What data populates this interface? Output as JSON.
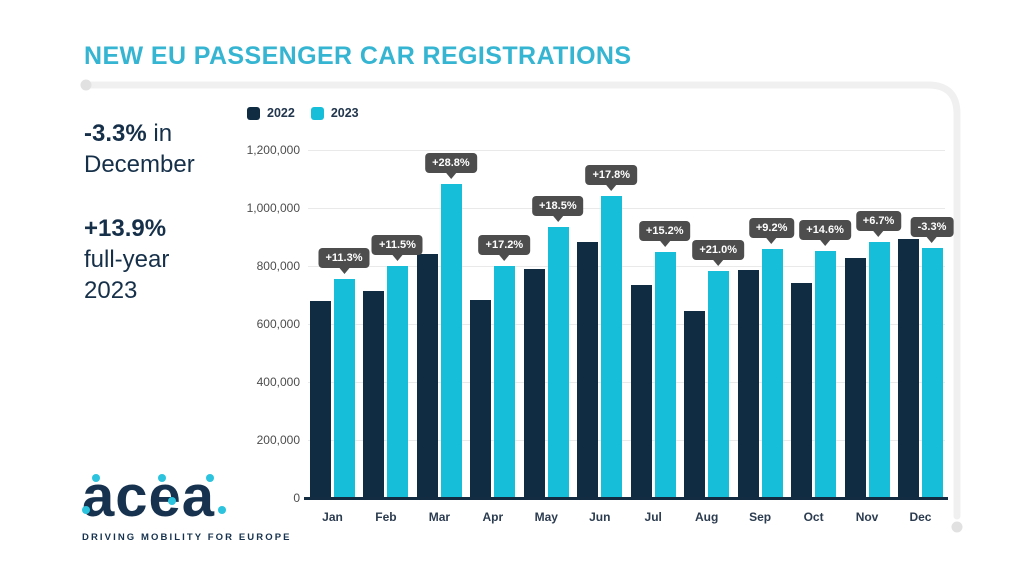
{
  "title": "NEW EU PASSENGER CAR REGISTRATIONS",
  "highlights": {
    "december": {
      "value": "-3.3%",
      "suffix": " in",
      "line2": "December"
    },
    "fullyear": {
      "value": "+13.9%",
      "line2": "full-year",
      "line3": "2023"
    }
  },
  "colors": {
    "accent_cyan": "#17bed9",
    "navy": "#0f2c43",
    "title_cyan": "#35b5d2",
    "callout_bg": "#4d4d4d",
    "gridline": "#e9e9e9"
  },
  "chart_data": {
    "type": "bar",
    "title": "",
    "xlabel": "",
    "ylabel": "",
    "categories": [
      "Jan",
      "Feb",
      "Mar",
      "Apr",
      "May",
      "Jun",
      "Jul",
      "Aug",
      "Sep",
      "Oct",
      "Nov",
      "Dec"
    ],
    "series": [
      {
        "name": "2022",
        "color": "#0f2c43",
        "values": [
          683000,
          719000,
          844000,
          685000,
          792000,
          887000,
          739000,
          650000,
          788000,
          746000,
          830000,
          897000
        ]
      },
      {
        "name": "2023",
        "color": "#17bed9",
        "values": [
          760000,
          802000,
          1087000,
          803000,
          938000,
          1045000,
          851000,
          787000,
          861000,
          855000,
          885000,
          867000
        ]
      }
    ],
    "change_labels": [
      "+11.3%",
      "+11.5%",
      "+28.8%",
      "+17.2%",
      "+18.5%",
      "+17.8%",
      "+15.2%",
      "+21.0%",
      "+9.2%",
      "+14.6%",
      "+6.7%",
      "-3.3%"
    ],
    "y_ticks": [
      "0",
      "200,000",
      "400,000",
      "600,000",
      "800,000",
      "1,000,000",
      "1,200,000"
    ],
    "ylim": [
      0,
      1200000
    ],
    "grid": true,
    "legend_position": "top-left"
  },
  "logo": {
    "text": "acea",
    "tagline": "DRIVING MOBILITY FOR EUROPE"
  }
}
